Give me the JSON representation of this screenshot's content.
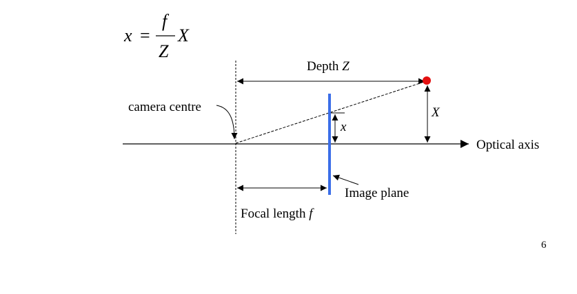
{
  "equation": {
    "lhs": "x",
    "equals": "=",
    "numerator": "f",
    "denominator": "Z",
    "factor": "X"
  },
  "labels": {
    "depth_text": "Depth ",
    "depth_symbol": "Z",
    "camera_centre": "camera centre",
    "small_x": "x",
    "big_x": "X",
    "optical_axis": "Optical axis",
    "image_plane": "Image plane",
    "focal_text": "Focal length ",
    "focal_symbol": "f"
  },
  "page_number": "6",
  "colors": {
    "image_plane": "#3b6ee8",
    "point": "#e31010",
    "lines": "#000000"
  }
}
